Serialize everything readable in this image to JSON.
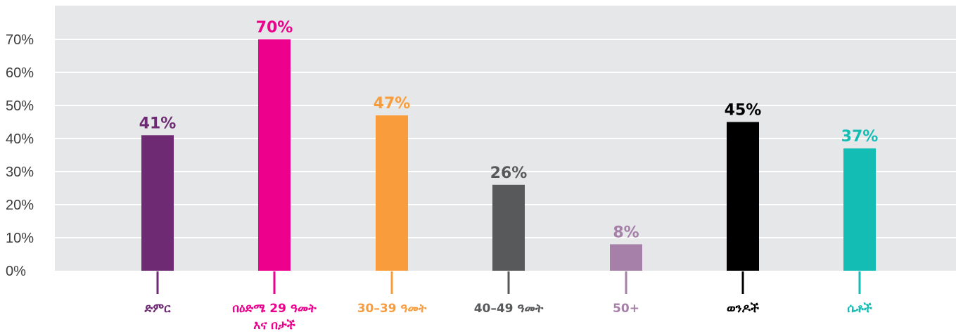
{
  "chart_data": {
    "type": "bar",
    "categories": [
      [
        "ድምር"
      ],
      [
        "በዕድሜ 29 ዓመት",
        "እና በታች"
      ],
      [
        "30–39 ዓመት"
      ],
      [
        "40–49  ዓመት"
      ],
      [
        "50+"
      ],
      [
        "ወንዶች"
      ],
      [
        "ሴቶች"
      ]
    ],
    "values": [
      41,
      70,
      47,
      26,
      8,
      45,
      37
    ],
    "value_labels": [
      "41%",
      "70%",
      "47%",
      "26%",
      "8%",
      "45%",
      "37%"
    ],
    "colors": [
      "#6e2a72",
      "#ec008c",
      "#f99d3c",
      "#58595b",
      "#a680a9",
      "#000000",
      "#14bdb3"
    ],
    "y_ticks": [
      0,
      10,
      20,
      30,
      40,
      50,
      60,
      70
    ],
    "y_tick_labels": [
      "0%",
      "10%",
      "20%",
      "30%",
      "40%",
      "50%",
      "60%",
      "70%"
    ],
    "ylim": [
      0,
      80
    ],
    "grid": true,
    "plot_background": "#e6e7e9",
    "title": "",
    "xlabel": "",
    "ylabel": ""
  }
}
